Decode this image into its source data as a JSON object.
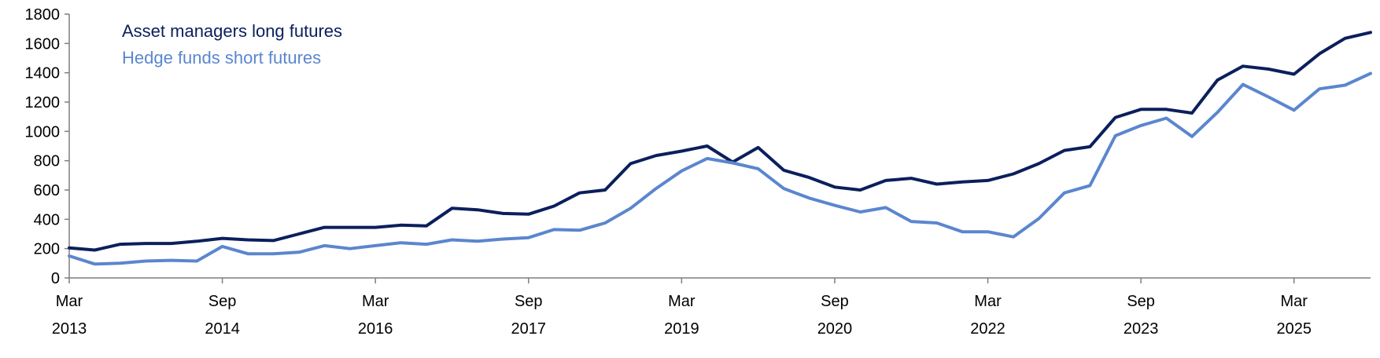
{
  "chart_data": {
    "type": "line",
    "title": "",
    "xlabel": "",
    "ylabel": "",
    "ylim": [
      0,
      1800
    ],
    "yticks": [
      0,
      200,
      400,
      600,
      800,
      1000,
      1200,
      1400,
      1600,
      1800
    ],
    "xlim": [
      "2013-03",
      "2025-12"
    ],
    "xticks": [
      {
        "value": "2013-03",
        "month": "Mar",
        "year": "2013"
      },
      {
        "value": "2014-09",
        "month": "Sep",
        "year": "2014"
      },
      {
        "value": "2016-03",
        "month": "Mar",
        "year": "2016"
      },
      {
        "value": "2017-09",
        "month": "Sep",
        "year": "2017"
      },
      {
        "value": "2019-03",
        "month": "Mar",
        "year": "2019"
      },
      {
        "value": "2020-09",
        "month": "Sep",
        "year": "2020"
      },
      {
        "value": "2022-03",
        "month": "Mar",
        "year": "2022"
      },
      {
        "value": "2023-09",
        "month": "Sep",
        "year": "2023"
      },
      {
        "value": "2025-03",
        "month": "Mar",
        "year": "2025"
      }
    ],
    "grid": false,
    "legend_position": "top-left",
    "x": [
      "2013-03",
      "2013-06",
      "2013-09",
      "2013-12",
      "2014-03",
      "2014-06",
      "2014-09",
      "2014-12",
      "2015-03",
      "2015-06",
      "2015-09",
      "2015-12",
      "2016-03",
      "2016-06",
      "2016-09",
      "2016-12",
      "2017-03",
      "2017-06",
      "2017-09",
      "2017-12",
      "2018-03",
      "2018-06",
      "2018-09",
      "2018-12",
      "2019-03",
      "2019-06",
      "2019-09",
      "2019-12",
      "2020-03",
      "2020-06",
      "2020-09",
      "2020-12",
      "2021-03",
      "2021-06",
      "2021-09",
      "2021-12",
      "2022-03",
      "2022-06",
      "2022-09",
      "2022-12",
      "2023-03",
      "2023-06",
      "2023-09",
      "2023-12",
      "2024-03",
      "2024-06",
      "2024-09",
      "2024-12",
      "2025-03",
      "2025-06",
      "2025-09",
      "2025-12"
    ],
    "series": [
      {
        "name": "Asset managers long futures",
        "color": "#0b1f5c",
        "values": [
          205,
          190,
          230,
          235,
          235,
          250,
          270,
          260,
          255,
          300,
          345,
          345,
          345,
          360,
          355,
          475,
          465,
          440,
          435,
          490,
          580,
          600,
          780,
          835,
          865,
          900,
          790,
          890,
          735,
          685,
          620,
          600,
          665,
          680,
          640,
          655,
          665,
          710,
          780,
          870,
          895,
          1095,
          1150,
          1150,
          1125,
          1350,
          1445,
          1425,
          1390,
          1530,
          1635,
          1675
        ]
      },
      {
        "name": "Hedge funds short futures",
        "color": "#5b86cf",
        "values": [
          150,
          95,
          100,
          115,
          120,
          115,
          215,
          165,
          165,
          175,
          220,
          200,
          220,
          240,
          230,
          260,
          250,
          265,
          275,
          330,
          325,
          375,
          475,
          610,
          730,
          815,
          785,
          745,
          610,
          545,
          495,
          450,
          480,
          385,
          375,
          315,
          315,
          280,
          405,
          580,
          630,
          970,
          1040,
          1090,
          965,
          1130,
          1320,
          1235,
          1145,
          1290,
          1315,
          1395
        ]
      }
    ]
  }
}
